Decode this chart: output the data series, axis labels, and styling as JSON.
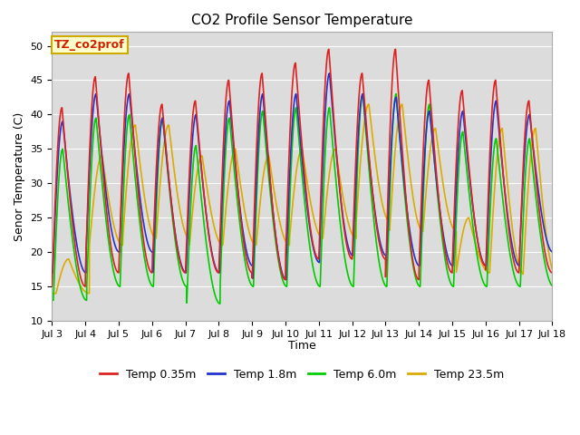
{
  "title": "CO2 Profile Sensor Temperature",
  "ylabel": "Senor Temperature (C)",
  "xlabel": "Time",
  "annotation": "TZ_co2prof",
  "ylim": [
    10,
    52
  ],
  "yticks": [
    10,
    15,
    20,
    25,
    30,
    35,
    40,
    45,
    50
  ],
  "xtick_labels": [
    "Jul 3",
    "Jul 4",
    "Jul 5",
    "Jul 6",
    "Jul 7",
    "Jul 8",
    "Jul 9",
    "Jul 10",
    "Jul 11",
    "Jul 12",
    "Jul 13",
    "Jul 14",
    "Jul 15",
    "Jul 16",
    "Jul 17",
    "Jul 18"
  ],
  "series": {
    "Temp 0.35m": {
      "color": "#dd2222",
      "lw": 1.2
    },
    "Temp 1.8m": {
      "color": "#2233cc",
      "lw": 1.2
    },
    "Temp 6.0m": {
      "color": "#00cc00",
      "lw": 1.2
    },
    "Temp 23.5m": {
      "color": "#ddaa00",
      "lw": 1.2
    }
  },
  "plot_bg": "#dcdcdc",
  "fig_bg": "#ffffff",
  "annotation_bg": "#ffffcc",
  "annotation_border": "#ccaa00",
  "n_days": 15,
  "red_peaks": [
    41,
    45.5,
    46,
    41.5,
    42,
    45,
    46,
    47.5,
    49.5,
    46,
    49.5,
    45,
    43.5,
    45,
    42
  ],
  "red_troughs": [
    15,
    17,
    17,
    17,
    17,
    17,
    16,
    19,
    19,
    19,
    16,
    17,
    18,
    17,
    17
  ],
  "blue_peaks": [
    39,
    43,
    43,
    39.5,
    40,
    42,
    43,
    43,
    46,
    43,
    42.5,
    40.5,
    40.5,
    42,
    40
  ],
  "blue_troughs": [
    17,
    20,
    20,
    17,
    17,
    18,
    16,
    18.5,
    19.5,
    19.5,
    18,
    18,
    18,
    18,
    20
  ],
  "green_peaks": [
    35,
    39.5,
    40,
    39.5,
    35.5,
    39.5,
    40.5,
    41,
    41,
    43,
    43,
    41.5,
    37.5,
    36.5,
    36.5
  ],
  "green_troughs": [
    13,
    15,
    15,
    15,
    12.5,
    15,
    15,
    15,
    15,
    15,
    15,
    15,
    15,
    15,
    15
  ],
  "orange_peaks": [
    19,
    34,
    38.5,
    38.5,
    34,
    35,
    34,
    35,
    35,
    41.5,
    41.5,
    38,
    25,
    38,
    38
  ],
  "orange_troughs": [
    14,
    21,
    22,
    22,
    21,
    21,
    21,
    22,
    22,
    24.5,
    23,
    23,
    17,
    17,
    16.5
  ]
}
